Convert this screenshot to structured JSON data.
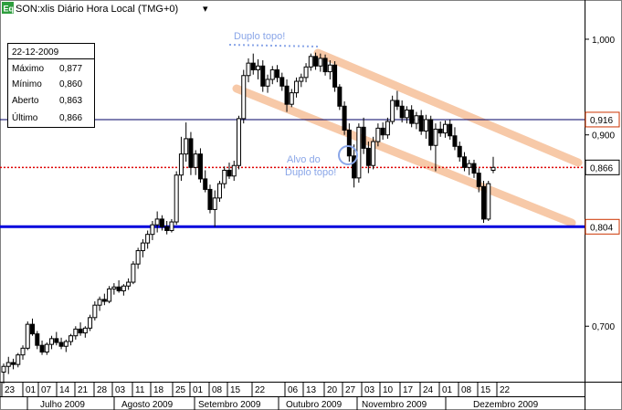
{
  "header": {
    "badge": "Eq",
    "title": "SON:xlis Diário Hora Local (TMG+0)",
    "menu_arrow": "▾"
  },
  "info_box": {
    "date": "22-12-2009",
    "rows": [
      {
        "label": "Máximo",
        "value": "0,877"
      },
      {
        "label": "Mínimo",
        "value": "0,860"
      },
      {
        "label": "Aberto",
        "value": "0,863"
      },
      {
        "label": "Último",
        "value": "0,866"
      }
    ]
  },
  "annotations": {
    "top": "Duplo topo!",
    "target_line1": "Alvo do",
    "target_line2": "Duplo topo!"
  },
  "colors": {
    "candle_up": "#ffffff",
    "candle_down": "#000000",
    "support_line": "#0000dd",
    "last_price_line": "#dd0000",
    "resistance_line": "#000066",
    "channel": "#f7c9a8",
    "annotation": "#8aa6e8"
  },
  "chart_data": {
    "type": "candlestick",
    "title": "SON:xlis Diário Hora Local (TMG+0)",
    "ylim": [
      0.642,
      1.02
    ],
    "grid": false,
    "y_ticks": [
      {
        "value": 1.0,
        "label": "1,000"
      },
      {
        "value": 0.9,
        "label": "0,900"
      },
      {
        "value": 0.7,
        "label": "0,700"
      }
    ],
    "price_labels": [
      {
        "id": "resistance",
        "value": 0.916,
        "label": "0,916",
        "color": "#cc3300"
      },
      {
        "id": "last",
        "value": 0.866,
        "label": "0,866",
        "color": "#000000"
      },
      {
        "id": "support",
        "value": 0.804,
        "label": "0,804",
        "color": "#cc3300"
      }
    ],
    "x_day_ticks": [
      "23",
      "01",
      "07",
      "14",
      "21",
      "28",
      "03",
      "11",
      "18",
      "25",
      "01",
      "08",
      "15",
      "22",
      "06",
      "13",
      "20",
      "27",
      "03",
      "10",
      "17",
      "24",
      "01",
      "08",
      "15",
      "22"
    ],
    "x_month_labels": [
      "Julho 2009",
      "Agosto 2009",
      "Setembro 2009",
      "Outubro 2009",
      "Novembro 2009",
      "Dezembro 2009"
    ],
    "series": [
      {
        "o": 0.652,
        "h": 0.661,
        "l": 0.64,
        "c": 0.658
      },
      {
        "o": 0.658,
        "h": 0.668,
        "l": 0.65,
        "c": 0.662
      },
      {
        "o": 0.662,
        "h": 0.666,
        "l": 0.655,
        "c": 0.66
      },
      {
        "o": 0.66,
        "h": 0.672,
        "l": 0.657,
        "c": 0.67
      },
      {
        "o": 0.67,
        "h": 0.68,
        "l": 0.665,
        "c": 0.677
      },
      {
        "o": 0.677,
        "h": 0.705,
        "l": 0.675,
        "c": 0.702
      },
      {
        "o": 0.702,
        "h": 0.708,
        "l": 0.69,
        "c": 0.692
      },
      {
        "o": 0.692,
        "h": 0.695,
        "l": 0.676,
        "c": 0.68
      },
      {
        "o": 0.68,
        "h": 0.685,
        "l": 0.67,
        "c": 0.673
      },
      {
        "o": 0.673,
        "h": 0.683,
        "l": 0.67,
        "c": 0.681
      },
      {
        "o": 0.681,
        "h": 0.69,
        "l": 0.676,
        "c": 0.687
      },
      {
        "o": 0.687,
        "h": 0.694,
        "l": 0.68,
        "c": 0.683
      },
      {
        "o": 0.683,
        "h": 0.688,
        "l": 0.676,
        "c": 0.679
      },
      {
        "o": 0.679,
        "h": 0.686,
        "l": 0.673,
        "c": 0.684
      },
      {
        "o": 0.684,
        "h": 0.692,
        "l": 0.68,
        "c": 0.69
      },
      {
        "o": 0.69,
        "h": 0.7,
        "l": 0.686,
        "c": 0.697
      },
      {
        "o": 0.697,
        "h": 0.704,
        "l": 0.69,
        "c": 0.693
      },
      {
        "o": 0.693,
        "h": 0.7,
        "l": 0.688,
        "c": 0.698
      },
      {
        "o": 0.698,
        "h": 0.712,
        "l": 0.695,
        "c": 0.709
      },
      {
        "o": 0.709,
        "h": 0.726,
        "l": 0.706,
        "c": 0.722
      },
      {
        "o": 0.722,
        "h": 0.731,
        "l": 0.716,
        "c": 0.728
      },
      {
        "o": 0.728,
        "h": 0.734,
        "l": 0.722,
        "c": 0.726
      },
      {
        "o": 0.726,
        "h": 0.742,
        "l": 0.724,
        "c": 0.739
      },
      {
        "o": 0.739,
        "h": 0.745,
        "l": 0.733,
        "c": 0.741
      },
      {
        "o": 0.741,
        "h": 0.748,
        "l": 0.735,
        "c": 0.737
      },
      {
        "o": 0.737,
        "h": 0.744,
        "l": 0.732,
        "c": 0.742
      },
      {
        "o": 0.742,
        "h": 0.75,
        "l": 0.738,
        "c": 0.746
      },
      {
        "o": 0.746,
        "h": 0.768,
        "l": 0.744,
        "c": 0.765
      },
      {
        "o": 0.765,
        "h": 0.782,
        "l": 0.76,
        "c": 0.779
      },
      {
        "o": 0.779,
        "h": 0.791,
        "l": 0.772,
        "c": 0.787
      },
      {
        "o": 0.787,
        "h": 0.8,
        "l": 0.781,
        "c": 0.796
      },
      {
        "o": 0.796,
        "h": 0.81,
        "l": 0.79,
        "c": 0.806
      },
      {
        "o": 0.806,
        "h": 0.82,
        "l": 0.798,
        "c": 0.812
      },
      {
        "o": 0.812,
        "h": 0.816,
        "l": 0.8,
        "c": 0.804
      },
      {
        "o": 0.804,
        "h": 0.81,
        "l": 0.796,
        "c": 0.8
      },
      {
        "o": 0.8,
        "h": 0.812,
        "l": 0.798,
        "c": 0.809
      },
      {
        "o": 0.809,
        "h": 0.862,
        "l": 0.806,
        "c": 0.858
      },
      {
        "o": 0.858,
        "h": 0.898,
        "l": 0.852,
        "c": 0.88
      },
      {
        "o": 0.88,
        "h": 0.913,
        "l": 0.872,
        "c": 0.896
      },
      {
        "o": 0.896,
        "h": 0.903,
        "l": 0.858,
        "c": 0.866
      },
      {
        "o": 0.866,
        "h": 0.884,
        "l": 0.858,
        "c": 0.88
      },
      {
        "o": 0.88,
        "h": 0.886,
        "l": 0.85,
        "c": 0.854
      },
      {
        "o": 0.854,
        "h": 0.863,
        "l": 0.84,
        "c": 0.843
      },
      {
        "o": 0.843,
        "h": 0.848,
        "l": 0.818,
        "c": 0.822
      },
      {
        "o": 0.822,
        "h": 0.842,
        "l": 0.804,
        "c": 0.834
      },
      {
        "o": 0.834,
        "h": 0.852,
        "l": 0.83,
        "c": 0.849
      },
      {
        "o": 0.849,
        "h": 0.867,
        "l": 0.844,
        "c": 0.863
      },
      {
        "o": 0.863,
        "h": 0.871,
        "l": 0.854,
        "c": 0.857
      },
      {
        "o": 0.857,
        "h": 0.873,
        "l": 0.852,
        "c": 0.868
      },
      {
        "o": 0.868,
        "h": 0.92,
        "l": 0.864,
        "c": 0.917
      },
      {
        "o": 0.917,
        "h": 0.968,
        "l": 0.912,
        "c": 0.962
      },
      {
        "o": 0.962,
        "h": 0.98,
        "l": 0.955,
        "c": 0.975
      },
      {
        "o": 0.975,
        "h": 0.985,
        "l": 0.963,
        "c": 0.968
      },
      {
        "o": 0.968,
        "h": 0.979,
        "l": 0.958,
        "c": 0.972
      },
      {
        "o": 0.972,
        "h": 0.978,
        "l": 0.945,
        "c": 0.951
      },
      {
        "o": 0.951,
        "h": 0.963,
        "l": 0.944,
        "c": 0.958
      },
      {
        "o": 0.958,
        "h": 0.972,
        "l": 0.953,
        "c": 0.968
      },
      {
        "o": 0.968,
        "h": 0.973,
        "l": 0.955,
        "c": 0.96
      },
      {
        "o": 0.96,
        "h": 0.965,
        "l": 0.946,
        "c": 0.951
      },
      {
        "o": 0.951,
        "h": 0.958,
        "l": 0.924,
        "c": 0.932
      },
      {
        "o": 0.932,
        "h": 0.948,
        "l": 0.929,
        "c": 0.944
      },
      {
        "o": 0.944,
        "h": 0.96,
        "l": 0.939,
        "c": 0.956
      },
      {
        "o": 0.956,
        "h": 0.964,
        "l": 0.95,
        "c": 0.96
      },
      {
        "o": 0.96,
        "h": 0.975,
        "l": 0.955,
        "c": 0.971
      },
      {
        "o": 0.971,
        "h": 0.985,
        "l": 0.967,
        "c": 0.982
      },
      {
        "o": 0.982,
        "h": 0.986,
        "l": 0.968,
        "c": 0.972
      },
      {
        "o": 0.972,
        "h": 0.985,
        "l": 0.966,
        "c": 0.98
      },
      {
        "o": 0.98,
        "h": 0.984,
        "l": 0.962,
        "c": 0.966
      },
      {
        "o": 0.966,
        "h": 0.978,
        "l": 0.958,
        "c": 0.973
      },
      {
        "o": 0.973,
        "h": 0.977,
        "l": 0.945,
        "c": 0.95
      },
      {
        "o": 0.95,
        "h": 0.953,
        "l": 0.926,
        "c": 0.93
      },
      {
        "o": 0.93,
        "h": 0.935,
        "l": 0.9,
        "c": 0.905
      },
      {
        "o": 0.905,
        "h": 0.912,
        "l": 0.872,
        "c": 0.878
      },
      {
        "o": 0.878,
        "h": 0.89,
        "l": 0.845,
        "c": 0.855
      },
      {
        "o": 0.855,
        "h": 0.912,
        "l": 0.85,
        "c": 0.908
      },
      {
        "o": 0.908,
        "h": 0.918,
        "l": 0.88,
        "c": 0.886
      },
      {
        "o": 0.886,
        "h": 0.893,
        "l": 0.86,
        "c": 0.868
      },
      {
        "o": 0.868,
        "h": 0.898,
        "l": 0.864,
        "c": 0.893
      },
      {
        "o": 0.893,
        "h": 0.912,
        "l": 0.888,
        "c": 0.907
      },
      {
        "o": 0.907,
        "h": 0.913,
        "l": 0.895,
        "c": 0.9
      },
      {
        "o": 0.9,
        "h": 0.918,
        "l": 0.896,
        "c": 0.914
      },
      {
        "o": 0.914,
        "h": 0.941,
        "l": 0.911,
        "c": 0.936
      },
      {
        "o": 0.936,
        "h": 0.946,
        "l": 0.926,
        "c": 0.93
      },
      {
        "o": 0.93,
        "h": 0.936,
        "l": 0.913,
        "c": 0.918
      },
      {
        "o": 0.918,
        "h": 0.93,
        "l": 0.912,
        "c": 0.926
      },
      {
        "o": 0.926,
        "h": 0.931,
        "l": 0.908,
        "c": 0.912
      },
      {
        "o": 0.912,
        "h": 0.924,
        "l": 0.906,
        "c": 0.92
      },
      {
        "o": 0.92,
        "h": 0.926,
        "l": 0.9,
        "c": 0.904
      },
      {
        "o": 0.904,
        "h": 0.921,
        "l": 0.896,
        "c": 0.916
      },
      {
        "o": 0.916,
        "h": 0.92,
        "l": 0.884,
        "c": 0.889
      },
      {
        "o": 0.889,
        "h": 0.912,
        "l": 0.862,
        "c": 0.906
      },
      {
        "o": 0.906,
        "h": 0.914,
        "l": 0.898,
        "c": 0.902
      },
      {
        "o": 0.902,
        "h": 0.915,
        "l": 0.897,
        "c": 0.911
      },
      {
        "o": 0.911,
        "h": 0.916,
        "l": 0.895,
        "c": 0.899
      },
      {
        "o": 0.899,
        "h": 0.908,
        "l": 0.884,
        "c": 0.888
      },
      {
        "o": 0.888,
        "h": 0.893,
        "l": 0.872,
        "c": 0.877
      },
      {
        "o": 0.877,
        "h": 0.882,
        "l": 0.862,
        "c": 0.866
      },
      {
        "o": 0.866,
        "h": 0.874,
        "l": 0.858,
        "c": 0.87
      },
      {
        "o": 0.87,
        "h": 0.874,
        "l": 0.855,
        "c": 0.86
      },
      {
        "o": 0.86,
        "h": 0.865,
        "l": 0.84,
        "c": 0.846
      },
      {
        "o": 0.846,
        "h": 0.852,
        "l": 0.808,
        "c": 0.812
      },
      {
        "o": 0.812,
        "h": 0.852,
        "l": 0.81,
        "c": 0.849
      },
      {
        "o": 0.863,
        "h": 0.877,
        "l": 0.86,
        "c": 0.866
      }
    ]
  }
}
